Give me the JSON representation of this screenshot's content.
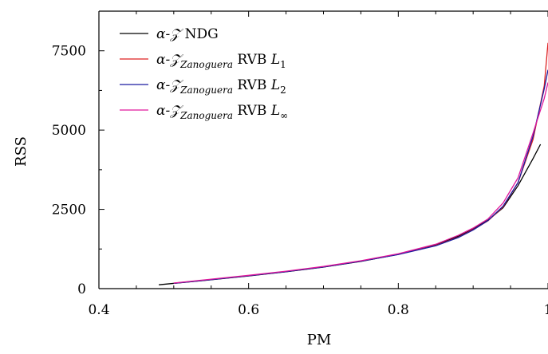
{
  "chart_data": {
    "type": "line",
    "xlabel": "PM",
    "ylabel": "RSS",
    "xlim": [
      0.4,
      1.0
    ],
    "ylim": [
      0,
      8750
    ],
    "grid": false,
    "legend_position": "top-left",
    "x_ticks": [
      "0.4",
      "0.6",
      "0.8",
      "1"
    ],
    "y_ticks": [
      "0",
      "2500",
      "5000",
      "7500"
    ],
    "x_tick_values": [
      0.4,
      0.6,
      0.8,
      1.0
    ],
    "y_tick_values": [
      0,
      2500,
      5000,
      7500
    ],
    "series": [
      {
        "name": "α-𝒵 NDG",
        "legend_main": "α-𝒵",
        "legend_sub": "",
        "legend_rest": " NDG",
        "legend_norm_sub": "",
        "color": "#000000",
        "points": [
          [
            0.48,
            120
          ],
          [
            0.55,
            280
          ],
          [
            0.6,
            400
          ],
          [
            0.65,
            530
          ],
          [
            0.7,
            680
          ],
          [
            0.75,
            860
          ],
          [
            0.8,
            1080
          ],
          [
            0.85,
            1380
          ],
          [
            0.88,
            1650
          ],
          [
            0.9,
            1880
          ],
          [
            0.92,
            2160
          ],
          [
            0.94,
            2550
          ],
          [
            0.96,
            3250
          ],
          [
            0.98,
            4100
          ],
          [
            0.99,
            4550
          ]
        ]
      },
      {
        "name": "α-𝒵Zanoguera RVB L1",
        "legend_main": "α-𝒵",
        "legend_sub": "Zanoguera",
        "legend_rest": " RVB ",
        "legend_norm": "L",
        "legend_norm_sub": "1",
        "color": "#dd2222",
        "points": [
          [
            0.5,
            170
          ],
          [
            0.55,
            290
          ],
          [
            0.6,
            410
          ],
          [
            0.65,
            540
          ],
          [
            0.7,
            690
          ],
          [
            0.75,
            870
          ],
          [
            0.8,
            1080
          ],
          [
            0.85,
            1360
          ],
          [
            0.88,
            1620
          ],
          [
            0.9,
            1860
          ],
          [
            0.92,
            2140
          ],
          [
            0.94,
            2580
          ],
          [
            0.96,
            3350
          ],
          [
            0.98,
            4700
          ],
          [
            0.995,
            6400
          ],
          [
            1.0,
            7750
          ]
        ]
      },
      {
        "name": "α-𝒵Zanoguera RVB L2",
        "legend_main": "α-𝒵",
        "legend_sub": "Zanoguera",
        "legend_rest": " RVB ",
        "legend_norm": "L",
        "legend_norm_sub": "2",
        "color": "#1a1aa0",
        "points": [
          [
            0.5,
            165
          ],
          [
            0.55,
            285
          ],
          [
            0.6,
            405
          ],
          [
            0.65,
            535
          ],
          [
            0.7,
            685
          ],
          [
            0.75,
            865
          ],
          [
            0.8,
            1075
          ],
          [
            0.85,
            1350
          ],
          [
            0.88,
            1610
          ],
          [
            0.9,
            1850
          ],
          [
            0.92,
            2150
          ],
          [
            0.94,
            2600
          ],
          [
            0.96,
            3350
          ],
          [
            0.98,
            4800
          ],
          [
            0.995,
            6300
          ],
          [
            1.0,
            6900
          ]
        ]
      },
      {
        "name": "α-𝒵Zanoguera RVB L∞",
        "legend_main": "α-𝒵",
        "legend_sub": "Zanoguera",
        "legend_rest": " RVB ",
        "legend_norm": "L",
        "legend_norm_sub": "∞",
        "color": "#e0189c",
        "points": [
          [
            0.5,
            175
          ],
          [
            0.55,
            300
          ],
          [
            0.6,
            420
          ],
          [
            0.65,
            550
          ],
          [
            0.7,
            700
          ],
          [
            0.75,
            880
          ],
          [
            0.8,
            1100
          ],
          [
            0.85,
            1400
          ],
          [
            0.88,
            1680
          ],
          [
            0.9,
            1910
          ],
          [
            0.92,
            2200
          ],
          [
            0.94,
            2700
          ],
          [
            0.96,
            3500
          ],
          [
            0.98,
            4900
          ],
          [
            0.995,
            6000
          ],
          [
            1.0,
            6500
          ]
        ]
      }
    ]
  }
}
